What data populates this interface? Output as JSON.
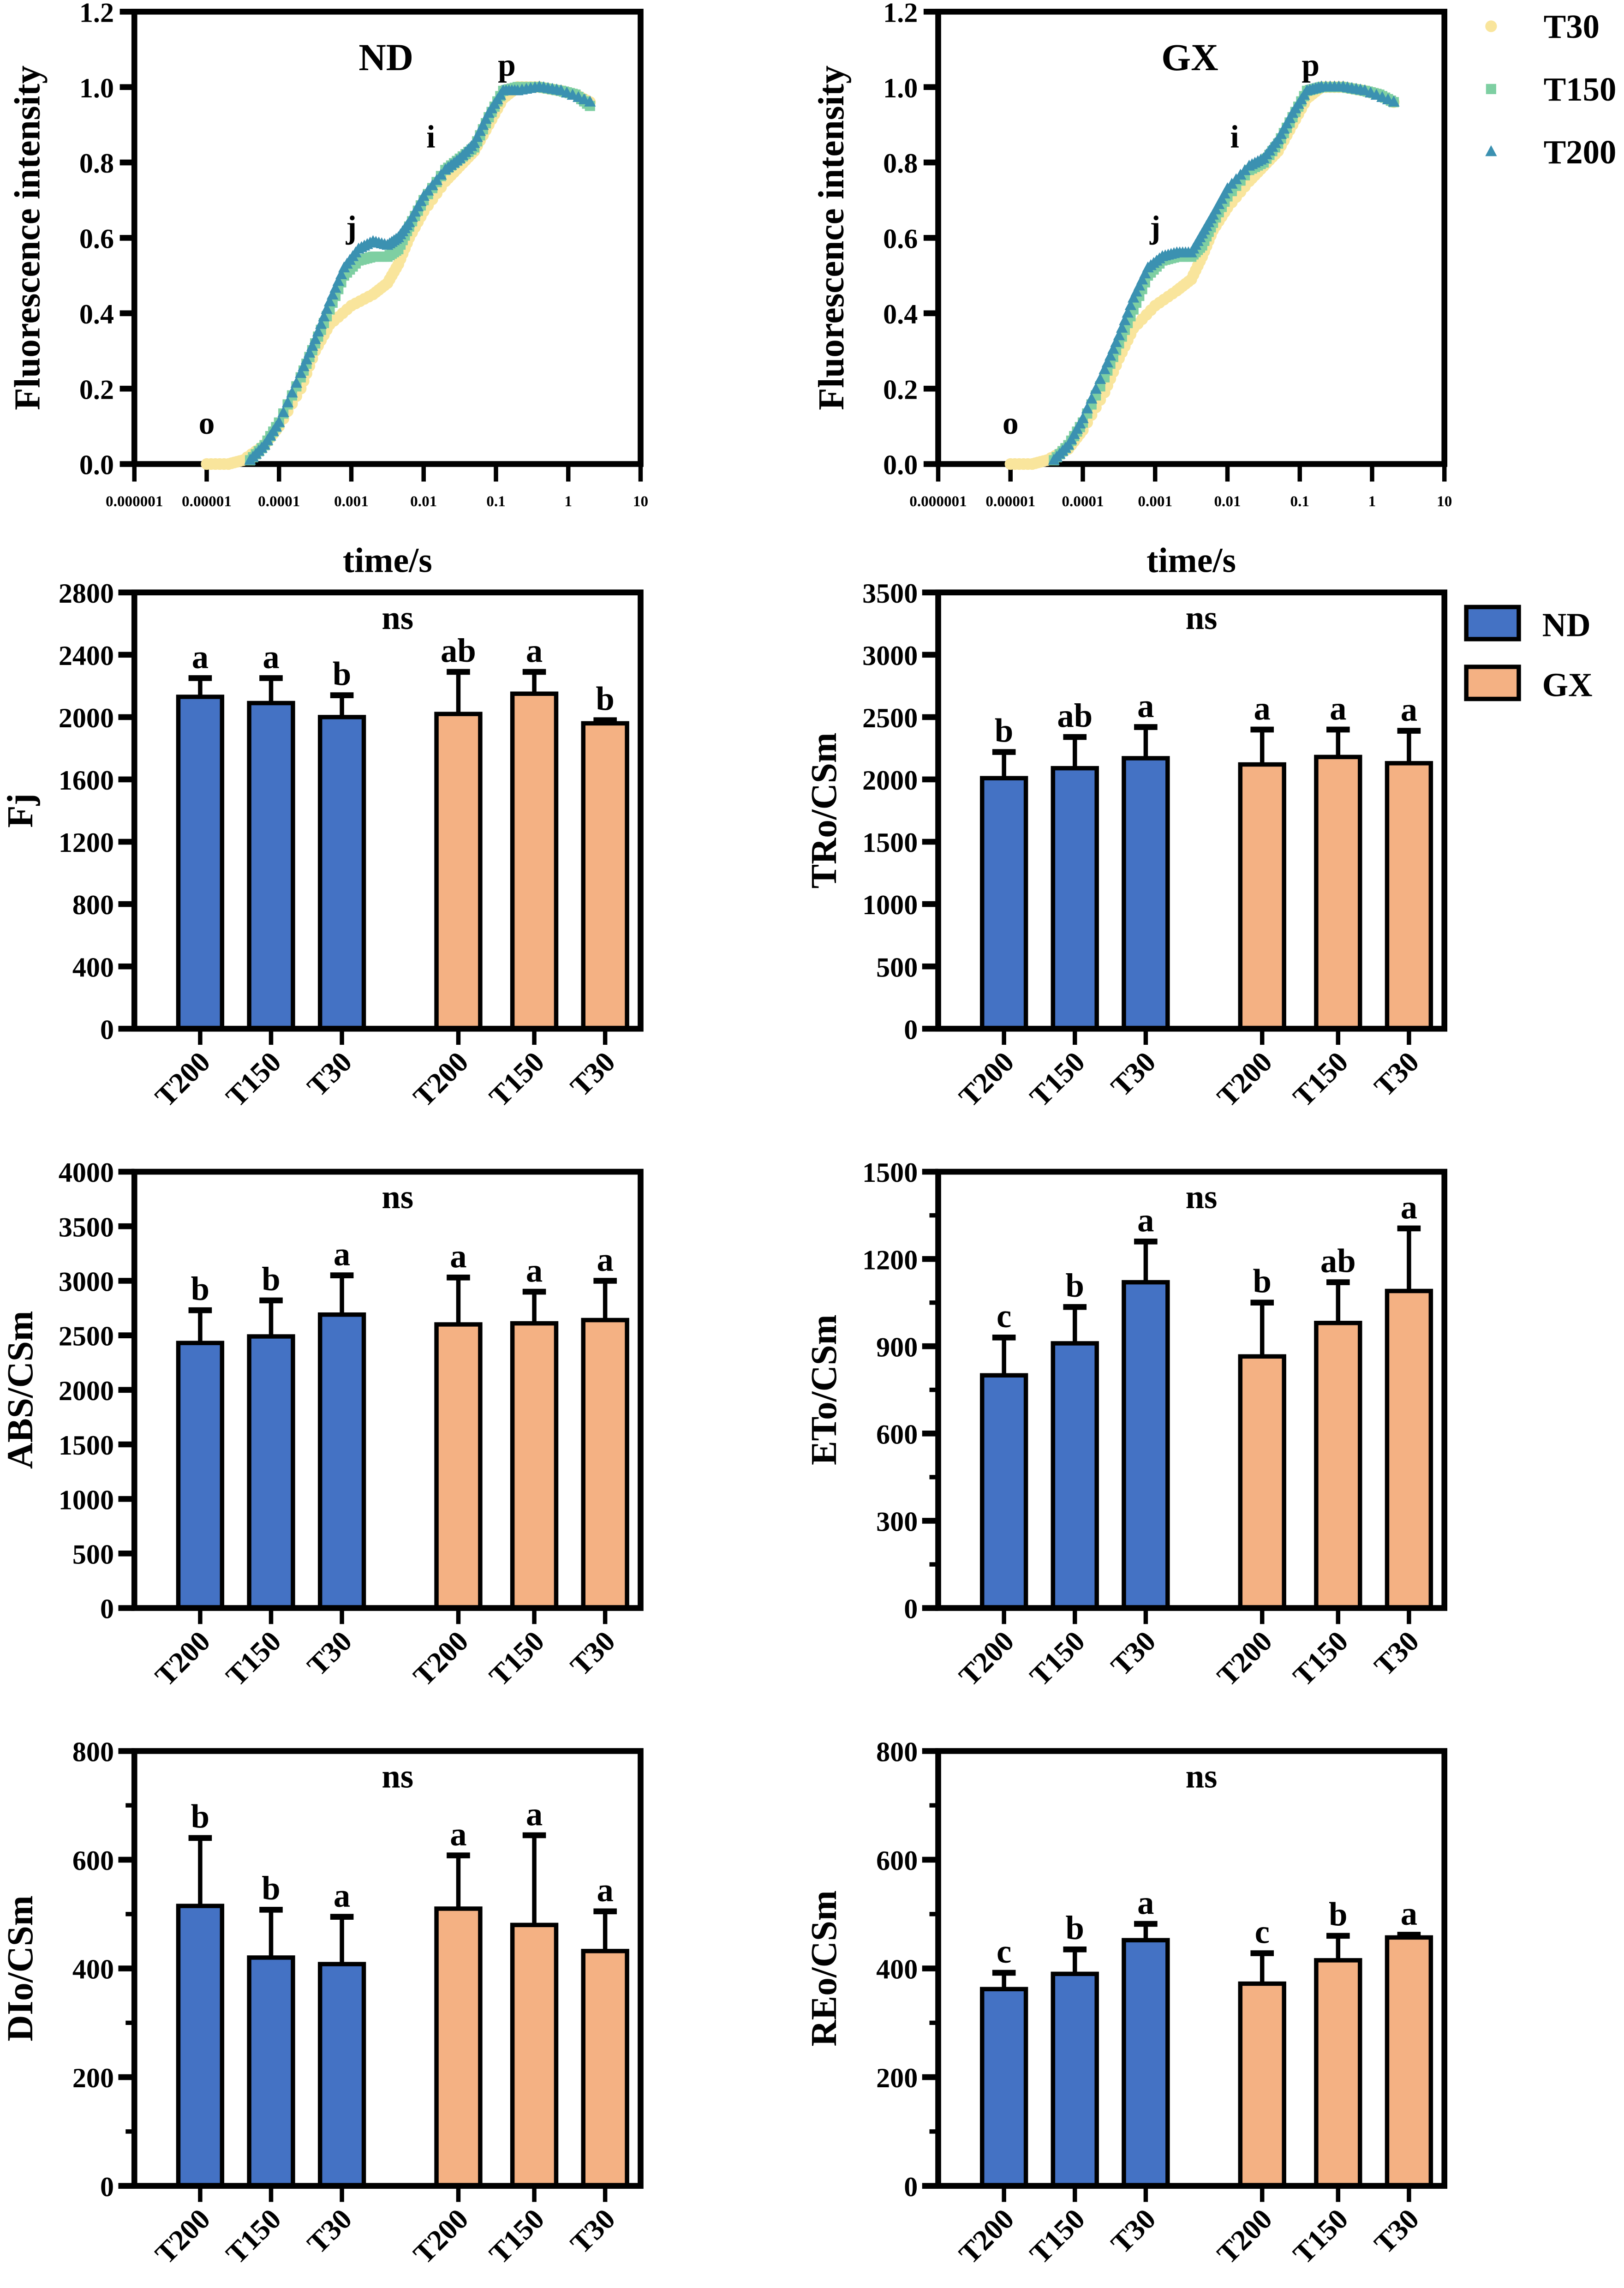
{
  "chart_data": [
    {
      "id": "nd-ojip",
      "type": "scatter",
      "title": "ND",
      "xlabel": "time/s",
      "ylabel": "Fluorescence intensity",
      "xscale": "log",
      "xlim": [
        1e-06,
        10
      ],
      "ylim": [
        0,
        1.2
      ],
      "xticks": [
        "0.000001",
        "0.00001",
        "0.0001",
        "0.001",
        "0.01",
        "0.1",
        "1",
        "10"
      ],
      "yticks": [
        "0.0",
        "0.2",
        "0.4",
        "0.6",
        "0.8",
        "1.0",
        "1.2"
      ],
      "annotations": [
        {
          "text": "o",
          "t": -5,
          "f": 0.08
        },
        {
          "text": "j",
          "t": -3,
          "f": 0.6
        },
        {
          "text": "i",
          "t": -1.9,
          "f": 0.84
        },
        {
          "text": "p",
          "t": -0.85,
          "f": 1.03
        }
      ],
      "series": [
        {
          "name": "T30",
          "marker": "circle",
          "color": "#f9e59c",
          "points": [
            [
              -5,
              0
            ],
            [
              -4.7,
              0
            ],
            [
              -4.5,
              0.01
            ],
            [
              -4.2,
              0.05
            ],
            [
              -4,
              0.1
            ],
            [
              -3.7,
              0.2
            ],
            [
              -3.5,
              0.3
            ],
            [
              -3.3,
              0.37
            ],
            [
              -3,
              0.42
            ],
            [
              -2.7,
              0.45
            ],
            [
              -2.5,
              0.48
            ],
            [
              -2.35,
              0.53
            ],
            [
              -2.2,
              0.6
            ],
            [
              -2,
              0.67
            ],
            [
              -1.7,
              0.75
            ],
            [
              -1.5,
              0.79
            ],
            [
              -1.3,
              0.83
            ],
            [
              -1.1,
              0.9
            ],
            [
              -0.9,
              0.97
            ],
            [
              -0.7,
              1.0
            ],
            [
              -0.4,
              1.0
            ],
            [
              -0.1,
              0.99
            ],
            [
              0.1,
              0.98
            ],
            [
              0.3,
              0.96
            ]
          ]
        },
        {
          "name": "T150",
          "marker": "square",
          "color": "#7ecfa2",
          "points": [
            [
              -4.4,
              0.01
            ],
            [
              -4.2,
              0.05
            ],
            [
              -4,
              0.11
            ],
            [
              -3.7,
              0.23
            ],
            [
              -3.5,
              0.32
            ],
            [
              -3.3,
              0.41
            ],
            [
              -3.1,
              0.5
            ],
            [
              -2.9,
              0.54
            ],
            [
              -2.7,
              0.55
            ],
            [
              -2.5,
              0.55
            ],
            [
              -2.35,
              0.57
            ],
            [
              -2.2,
              0.63
            ],
            [
              -2,
              0.7
            ],
            [
              -1.7,
              0.78
            ],
            [
              -1.5,
              0.81
            ],
            [
              -1.3,
              0.84
            ],
            [
              -1.1,
              0.92
            ],
            [
              -0.9,
              0.99
            ],
            [
              -0.7,
              1.0
            ],
            [
              -0.4,
              1.0
            ],
            [
              -0.1,
              0.99
            ],
            [
              0.1,
              0.98
            ],
            [
              0.3,
              0.95
            ]
          ]
        },
        {
          "name": "T200",
          "marker": "triangle",
          "color": "#3b91b1",
          "points": [
            [
              -4.4,
              0.01
            ],
            [
              -4.2,
              0.05
            ],
            [
              -4,
              0.11
            ],
            [
              -3.7,
              0.24
            ],
            [
              -3.5,
              0.33
            ],
            [
              -3.3,
              0.43
            ],
            [
              -3.1,
              0.52
            ],
            [
              -2.9,
              0.57
            ],
            [
              -2.7,
              0.59
            ],
            [
              -2.5,
              0.58
            ],
            [
              -2.35,
              0.6
            ],
            [
              -2.2,
              0.64
            ],
            [
              -2,
              0.71
            ],
            [
              -1.7,
              0.78
            ],
            [
              -1.5,
              0.81
            ],
            [
              -1.3,
              0.85
            ],
            [
              -1.1,
              0.93
            ],
            [
              -0.9,
              0.99
            ],
            [
              -0.7,
              0.99
            ],
            [
              -0.4,
              1.0
            ],
            [
              -0.1,
              0.99
            ],
            [
              0.3,
              0.96
            ]
          ]
        }
      ]
    },
    {
      "id": "gx-ojip",
      "type": "scatter",
      "title": "GX",
      "xlabel": "time/s",
      "ylabel": "Fluorescence intensity",
      "xscale": "log",
      "xlim": [
        1e-06,
        10
      ],
      "ylim": [
        0,
        1.2
      ],
      "xticks": [
        "0.000001",
        "0.00001",
        "0.0001",
        "0.001",
        "0.01",
        "0.1",
        "1",
        "10"
      ],
      "yticks": [
        "0.0",
        "0.2",
        "0.4",
        "0.6",
        "0.8",
        "1.0",
        "1.2"
      ],
      "annotations": [
        {
          "text": "o",
          "t": -5,
          "f": 0.08
        },
        {
          "text": "j",
          "t": -3,
          "f": 0.6
        },
        {
          "text": "i",
          "t": -1.9,
          "f": 0.84
        },
        {
          "text": "p",
          "t": -0.85,
          "f": 1.03
        }
      ],
      "series": [
        {
          "name": "T30",
          "marker": "circle",
          "color": "#f9e59c",
          "points": [
            [
              -5,
              0
            ],
            [
              -4.7,
              0
            ],
            [
              -4.5,
              0.01
            ],
            [
              -4.2,
              0.04
            ],
            [
              -4,
              0.09
            ],
            [
              -3.7,
              0.19
            ],
            [
              -3.5,
              0.28
            ],
            [
              -3.3,
              0.36
            ],
            [
              -3,
              0.42
            ],
            [
              -2.7,
              0.46
            ],
            [
              -2.5,
              0.49
            ],
            [
              -2.35,
              0.55
            ],
            [
              -2.2,
              0.62
            ],
            [
              -2,
              0.68
            ],
            [
              -1.7,
              0.75
            ],
            [
              -1.5,
              0.79
            ],
            [
              -1.3,
              0.83
            ],
            [
              -1.1,
              0.9
            ],
            [
              -0.9,
              0.97
            ],
            [
              -0.7,
              1.0
            ],
            [
              -0.4,
              1.0
            ],
            [
              -0.1,
              0.99
            ],
            [
              0.1,
              0.98
            ],
            [
              0.3,
              0.96
            ]
          ]
        },
        {
          "name": "T150",
          "marker": "square",
          "color": "#7ecfa2",
          "points": [
            [
              -4.4,
              0.01
            ],
            [
              -4.2,
              0.05
            ],
            [
              -4,
              0.11
            ],
            [
              -3.7,
              0.23
            ],
            [
              -3.5,
              0.32
            ],
            [
              -3.3,
              0.41
            ],
            [
              -3.1,
              0.5
            ],
            [
              -2.9,
              0.54
            ],
            [
              -2.7,
              0.55
            ],
            [
              -2.5,
              0.55
            ],
            [
              -2.35,
              0.58
            ],
            [
              -2.2,
              0.64
            ],
            [
              -2,
              0.71
            ],
            [
              -1.7,
              0.78
            ],
            [
              -1.5,
              0.8
            ],
            [
              -1.3,
              0.85
            ],
            [
              -1.1,
              0.92
            ],
            [
              -0.9,
              0.99
            ],
            [
              -0.7,
              1.0
            ],
            [
              -0.4,
              1.0
            ],
            [
              -0.1,
              0.99
            ],
            [
              0.1,
              0.98
            ],
            [
              0.3,
              0.96
            ]
          ]
        },
        {
          "name": "T200",
          "marker": "triangle",
          "color": "#3b91b1",
          "points": [
            [
              -4.4,
              0.01
            ],
            [
              -4.2,
              0.05
            ],
            [
              -4,
              0.12
            ],
            [
              -3.7,
              0.25
            ],
            [
              -3.5,
              0.34
            ],
            [
              -3.3,
              0.44
            ],
            [
              -3.1,
              0.52
            ],
            [
              -2.9,
              0.55
            ],
            [
              -2.7,
              0.56
            ],
            [
              -2.5,
              0.56
            ],
            [
              -2.35,
              0.61
            ],
            [
              -2.2,
              0.66
            ],
            [
              -2,
              0.73
            ],
            [
              -1.7,
              0.79
            ],
            [
              -1.5,
              0.81
            ],
            [
              -1.3,
              0.86
            ],
            [
              -1.1,
              0.93
            ],
            [
              -0.9,
              0.99
            ],
            [
              -0.7,
              1.0
            ],
            [
              -0.4,
              1.0
            ],
            [
              -0.1,
              0.99
            ],
            [
              0.3,
              0.96
            ]
          ]
        }
      ]
    },
    {
      "id": "fj",
      "type": "bar",
      "ylabel": "Fj",
      "ylim": [
        0,
        2800
      ],
      "ystep": 400,
      "minor": 0,
      "note": "ns",
      "categories": [
        "T200",
        "T150",
        "T30",
        "T200",
        "T150",
        "T30"
      ],
      "groups": [
        "ND",
        "ND",
        "ND",
        "GX",
        "GX",
        "GX"
      ],
      "values": [
        2130,
        2090,
        2000,
        2020,
        2150,
        1960
      ],
      "errors": [
        120,
        160,
        140,
        270,
        140,
        20
      ],
      "letters": [
        "a",
        "a",
        "b",
        "ab",
        "a",
        "b"
      ]
    },
    {
      "id": "tro-csm",
      "type": "bar",
      "ylabel": "TRo/CSm",
      "ylim": [
        0,
        3500
      ],
      "ystep": 500,
      "minor": 0,
      "note": "ns",
      "categories": [
        "T200",
        "T150",
        "T30",
        "T200",
        "T150",
        "T30"
      ],
      "groups": [
        "ND",
        "ND",
        "ND",
        "GX",
        "GX",
        "GX"
      ],
      "values": [
        2010,
        2090,
        2170,
        2120,
        2180,
        2130
      ],
      "errors": [
        210,
        250,
        250,
        280,
        220,
        260
      ],
      "letters": [
        "b",
        "ab",
        "a",
        "a",
        "a",
        "a"
      ]
    },
    {
      "id": "abs-csm",
      "type": "bar",
      "ylabel": "ABS/CSm",
      "ylim": [
        0,
        4000
      ],
      "ystep": 500,
      "minor": 0,
      "note": "ns",
      "categories": [
        "T200",
        "T150",
        "T30",
        "T200",
        "T150",
        "T30"
      ],
      "groups": [
        "ND",
        "ND",
        "ND",
        "GX",
        "GX",
        "GX"
      ],
      "values": [
        2430,
        2490,
        2690,
        2600,
        2610,
        2640
      ],
      "errors": [
        300,
        330,
        360,
        430,
        290,
        360
      ],
      "letters": [
        "b",
        "b",
        "a",
        "a",
        "a",
        "a"
      ]
    },
    {
      "id": "eto-csm",
      "type": "bar",
      "ylabel": "ETo/CSm",
      "ylim": [
        0,
        1500
      ],
      "ystep": 300,
      "minor": 150,
      "note": "ns",
      "categories": [
        "T200",
        "T150",
        "T30",
        "T200",
        "T150",
        "T30"
      ],
      "groups": [
        "ND",
        "ND",
        "ND",
        "GX",
        "GX",
        "GX"
      ],
      "values": [
        800,
        910,
        1120,
        865,
        980,
        1090
      ],
      "errors": [
        130,
        125,
        140,
        185,
        140,
        215
      ],
      "letters": [
        "c",
        "b",
        "a",
        "b",
        "ab",
        "a"
      ]
    },
    {
      "id": "dio-csm",
      "type": "bar",
      "ylabel": "DIo/CSm",
      "ylim": [
        0,
        800
      ],
      "ystep": 200,
      "minor": 100,
      "note": "ns",
      "categories": [
        "T200",
        "T150",
        "T30",
        "T200",
        "T150",
        "T30"
      ],
      "groups": [
        "ND",
        "ND",
        "ND",
        "GX",
        "GX",
        "GX"
      ],
      "values": [
        515,
        420,
        408,
        510,
        480,
        432
      ],
      "errors": [
        125,
        88,
        87,
        98,
        165,
        73
      ],
      "letters": [
        "b",
        "b",
        "a",
        "a",
        "a",
        "a"
      ]
    },
    {
      "id": "reo-csm",
      "type": "bar",
      "ylabel": "REo/CSm",
      "ylim": [
        0,
        800
      ],
      "ystep": 200,
      "minor": 100,
      "note": "ns",
      "categories": [
        "T200",
        "T150",
        "T30",
        "T200",
        "T150",
        "T30"
      ],
      "groups": [
        "ND",
        "ND",
        "ND",
        "GX",
        "GX",
        "GX"
      ],
      "values": [
        362,
        390,
        452,
        372,
        415,
        457
      ],
      "errors": [
        30,
        45,
        30,
        56,
        45,
        5
      ],
      "letters": [
        "c",
        "b",
        "a",
        "c",
        "b",
        "a"
      ]
    }
  ],
  "legends": {
    "line": [
      {
        "label": "T30",
        "marker": "circle",
        "color": "#f9e59c"
      },
      {
        "label": "T150",
        "marker": "square",
        "color": "#7ecfa2"
      },
      {
        "label": "T200",
        "marker": "triangle",
        "color": "#3b91b1"
      }
    ],
    "bar": [
      {
        "label": "ND",
        "color": "#4472c4"
      },
      {
        "label": "GX",
        "color": "#f4b183"
      }
    ]
  }
}
